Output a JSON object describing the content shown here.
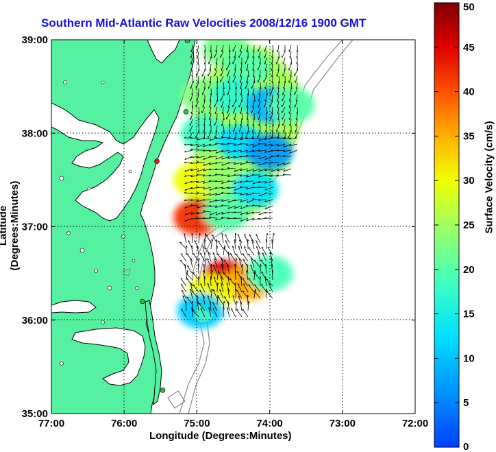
{
  "title": "Southern Mid-Atlantic Raw Velocities 2008/12/16 1900 GMT",
  "xlabel": "Longitude (Degrees:Minutes)",
  "ylabel": "Latitude (Degrees:Minutes)",
  "colorbar": {
    "label": "Surface Velocity (cm/s)",
    "min": 0,
    "max": 50,
    "ticks": [
      "0",
      "5",
      "10",
      "15",
      "20",
      "25",
      "30",
      "35",
      "40",
      "45",
      "50"
    ]
  },
  "map": {
    "x_ticks": [
      "77:00",
      "76:00",
      "75:00",
      "74:00",
      "73:00",
      "72:00"
    ],
    "y_ticks": [
      "39:00",
      "38:00",
      "37:00",
      "36:00",
      "35:00"
    ],
    "lon_range": [
      -77,
      -72
    ],
    "lat_range": [
      35,
      39
    ],
    "grid": true,
    "land_color": "#55f0a0",
    "colormap": "jet",
    "stations": [
      {
        "lon": -75.13,
        "lat": 38.99,
        "color": "#22c33a"
      },
      {
        "lon": -75.15,
        "lat": 38.23,
        "color": "#22c33a"
      },
      {
        "lon": -75.55,
        "lat": 37.7,
        "color": "#e01818"
      },
      {
        "lon": -75.75,
        "lat": 36.2,
        "color": "#22c33a"
      },
      {
        "lon": -75.47,
        "lat": 35.25,
        "color": "#22c33a"
      }
    ]
  },
  "chart_data": {
    "type": "heatmap",
    "title": "Southern Mid-Atlantic Raw Velocities 2008/12/16 1900 GMT",
    "xlabel": "Longitude (Degrees:Minutes)",
    "ylabel": "Latitude (Degrees:Minutes)",
    "xlim": [
      -77,
      -72
    ],
    "ylim": [
      35,
      39
    ],
    "color_range": [
      0,
      50
    ],
    "zlabel": "Surface Velocity (cm/s)",
    "regions": [
      {
        "lon": -74.6,
        "lat": 38.9,
        "speed": 22
      },
      {
        "lon": -74.3,
        "lat": 38.7,
        "speed": 20
      },
      {
        "lon": -74.9,
        "lat": 38.4,
        "speed": 23
      },
      {
        "lon": -74.5,
        "lat": 38.4,
        "speed": 17
      },
      {
        "lon": -74.0,
        "lat": 38.3,
        "speed": 9
      },
      {
        "lon": -73.7,
        "lat": 38.3,
        "speed": 20
      },
      {
        "lon": -74.9,
        "lat": 38.0,
        "speed": 18
      },
      {
        "lon": -74.4,
        "lat": 37.9,
        "speed": 12
      },
      {
        "lon": -74.0,
        "lat": 37.8,
        "speed": 7
      },
      {
        "lon": -75.0,
        "lat": 37.5,
        "speed": 30
      },
      {
        "lon": -74.6,
        "lat": 37.5,
        "speed": 24
      },
      {
        "lon": -74.2,
        "lat": 37.4,
        "speed": 13
      },
      {
        "lon": -75.0,
        "lat": 37.1,
        "speed": 42
      },
      {
        "lon": -74.6,
        "lat": 37.15,
        "speed": 20
      },
      {
        "lon": -74.6,
        "lat": 36.45,
        "speed": 45
      },
      {
        "lon": -74.3,
        "lat": 36.4,
        "speed": 35
      },
      {
        "lon": -74.8,
        "lat": 36.3,
        "speed": 30
      },
      {
        "lon": -74.95,
        "lat": 36.1,
        "speed": 11
      },
      {
        "lon": -74.0,
        "lat": 36.5,
        "speed": 19
      }
    ]
  }
}
